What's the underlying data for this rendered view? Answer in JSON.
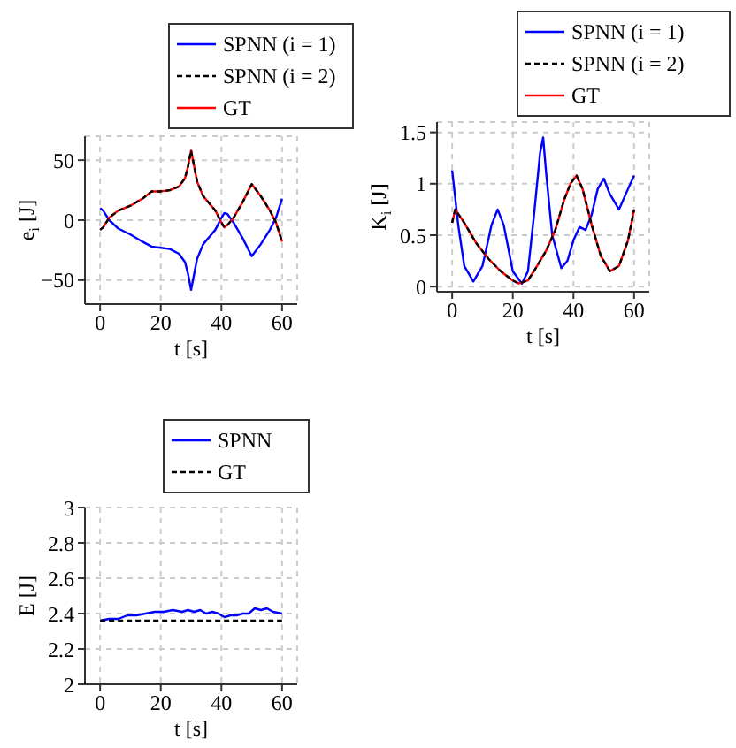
{
  "chart_data": [
    {
      "type": "line",
      "xlabel": "t [s]",
      "ylabel": "e$_{i}$ [J]",
      "xlim": [
        -5,
        65
      ],
      "ylim": [
        -70,
        70
      ],
      "xticks": [
        0,
        20,
        40,
        60
      ],
      "yticks": [
        {
          "value": -50,
          "label": "−50"
        },
        0,
        50
      ],
      "grid": true,
      "legend": "top right",
      "marker": "none",
      "series": [
        {
          "name": "SPNN (i = 1)",
          "color": "#0000ff",
          "line_style": "solid",
          "x": [
            0,
            1,
            3,
            6,
            10,
            14,
            17,
            20,
            23,
            26,
            28,
            29,
            30,
            31,
            32,
            34,
            36,
            38,
            40,
            41,
            42,
            44,
            47,
            50,
            53,
            56,
            58,
            60
          ],
          "values": [
            10,
            8,
            0,
            -7,
            -12,
            -18,
            -22,
            -23,
            -24,
            -28,
            -35,
            -45,
            -58,
            -45,
            -32,
            -20,
            -14,
            -8,
            2,
            6,
            5,
            -2,
            -15,
            -30,
            -20,
            -8,
            2,
            18
          ]
        },
        {
          "name": "SPNN (i = 2)",
          "color": "#000000",
          "line_style": "dashed",
          "x": [
            0,
            1,
            3,
            6,
            10,
            14,
            17,
            20,
            23,
            26,
            28,
            29,
            30,
            31,
            32,
            34,
            36,
            38,
            40,
            41,
            42,
            44,
            47,
            50,
            53,
            56,
            58,
            60
          ],
          "values": [
            -8,
            -6,
            2,
            8,
            12,
            18,
            24,
            24,
            25,
            28,
            35,
            45,
            58,
            45,
            32,
            20,
            14,
            8,
            -2,
            -6,
            -4,
            2,
            15,
            30,
            20,
            8,
            -2,
            -18
          ]
        },
        {
          "name": "GT",
          "color": "#ff0000",
          "line_style": "solid",
          "x": [
            0,
            1,
            3,
            6,
            10,
            14,
            17,
            20,
            23,
            26,
            28,
            29,
            30,
            31,
            32,
            34,
            36,
            38,
            40,
            41,
            42,
            44,
            47,
            50,
            53,
            56,
            58,
            60
          ],
          "values": [
            -8,
            -6,
            2,
            8,
            12,
            18,
            24,
            24,
            25,
            28,
            35,
            45,
            58,
            45,
            32,
            20,
            14,
            8,
            -2,
            -6,
            -4,
            2,
            15,
            30,
            20,
            8,
            -2,
            -18
          ]
        }
      ]
    },
    {
      "type": "line",
      "xlabel": "t [s]",
      "ylabel": "K$_{i}$ [J]",
      "xlim": [
        -5,
        65
      ],
      "ylim": [
        -0.05,
        1.6
      ],
      "xticks": [
        0,
        20,
        40,
        60
      ],
      "yticks": [
        0,
        0.5,
        1,
        1.5
      ],
      "grid": true,
      "legend": "top right",
      "marker": "none",
      "series": [
        {
          "name": "SPNN (i = 1)",
          "color": "#0000ff",
          "line_style": "solid",
          "x": [
            0,
            2,
            4,
            7,
            10,
            13,
            15,
            17,
            20,
            23,
            25,
            27,
            29,
            30,
            31,
            33,
            36,
            38,
            40,
            42,
            44,
            46,
            48,
            50,
            52,
            55,
            58,
            60
          ],
          "values": [
            1.13,
            0.6,
            0.2,
            0.05,
            0.2,
            0.6,
            0.75,
            0.6,
            0.15,
            0.03,
            0.15,
            0.7,
            1.3,
            1.45,
            1.1,
            0.5,
            0.18,
            0.25,
            0.45,
            0.58,
            0.55,
            0.7,
            0.95,
            1.05,
            0.9,
            0.75,
            0.95,
            1.08
          ]
        },
        {
          "name": "SPNN (i = 2)",
          "color": "#000000",
          "line_style": "dashed",
          "x": [
            0,
            1,
            4,
            8,
            12,
            16,
            20,
            22,
            25,
            28,
            31,
            34,
            37,
            39,
            41,
            43,
            46,
            49,
            52,
            55,
            58,
            60
          ],
          "values": [
            0.62,
            0.75,
            0.62,
            0.42,
            0.27,
            0.15,
            0.06,
            0.03,
            0.06,
            0.2,
            0.35,
            0.55,
            0.85,
            1.0,
            1.08,
            0.95,
            0.6,
            0.3,
            0.15,
            0.2,
            0.45,
            0.75
          ]
        },
        {
          "name": "GT",
          "color": "#ff0000",
          "line_style": "solid",
          "x": [
            0,
            1,
            4,
            8,
            12,
            16,
            20,
            22,
            25,
            28,
            31,
            34,
            37,
            39,
            41,
            43,
            46,
            49,
            52,
            55,
            58,
            60
          ],
          "values": [
            0.62,
            0.75,
            0.62,
            0.42,
            0.27,
            0.15,
            0.06,
            0.03,
            0.06,
            0.2,
            0.35,
            0.55,
            0.85,
            1.0,
            1.08,
            0.95,
            0.6,
            0.3,
            0.15,
            0.2,
            0.45,
            0.75
          ]
        }
      ]
    },
    {
      "type": "line",
      "xlabel": "t [s]",
      "ylabel": "E [J]",
      "xlim": [
        -5,
        65
      ],
      "ylim": [
        2,
        3
      ],
      "xticks": [
        0,
        20,
        40,
        60
      ],
      "yticks": [
        2,
        2.2,
        2.4,
        2.6,
        2.8,
        3
      ],
      "grid": true,
      "legend": "top right",
      "marker": "none",
      "series": [
        {
          "name": "SPNN",
          "color": "#0000ff",
          "line_style": "solid",
          "x": [
            0,
            3,
            6,
            9,
            12,
            15,
            18,
            21,
            24,
            27,
            29,
            31,
            33,
            35,
            37,
            39,
            41,
            43,
            45,
            47,
            49,
            51,
            53,
            55,
            57,
            60
          ],
          "values": [
            2.36,
            2.37,
            2.37,
            2.39,
            2.39,
            2.4,
            2.41,
            2.41,
            2.42,
            2.41,
            2.42,
            2.41,
            2.42,
            2.4,
            2.41,
            2.4,
            2.38,
            2.39,
            2.39,
            2.4,
            2.4,
            2.43,
            2.42,
            2.43,
            2.41,
            2.4
          ]
        },
        {
          "name": "GT",
          "color": "#000000",
          "line_style": "dashed",
          "x": [
            0,
            60
          ],
          "values": [
            2.36,
            2.36
          ]
        }
      ]
    }
  ]
}
